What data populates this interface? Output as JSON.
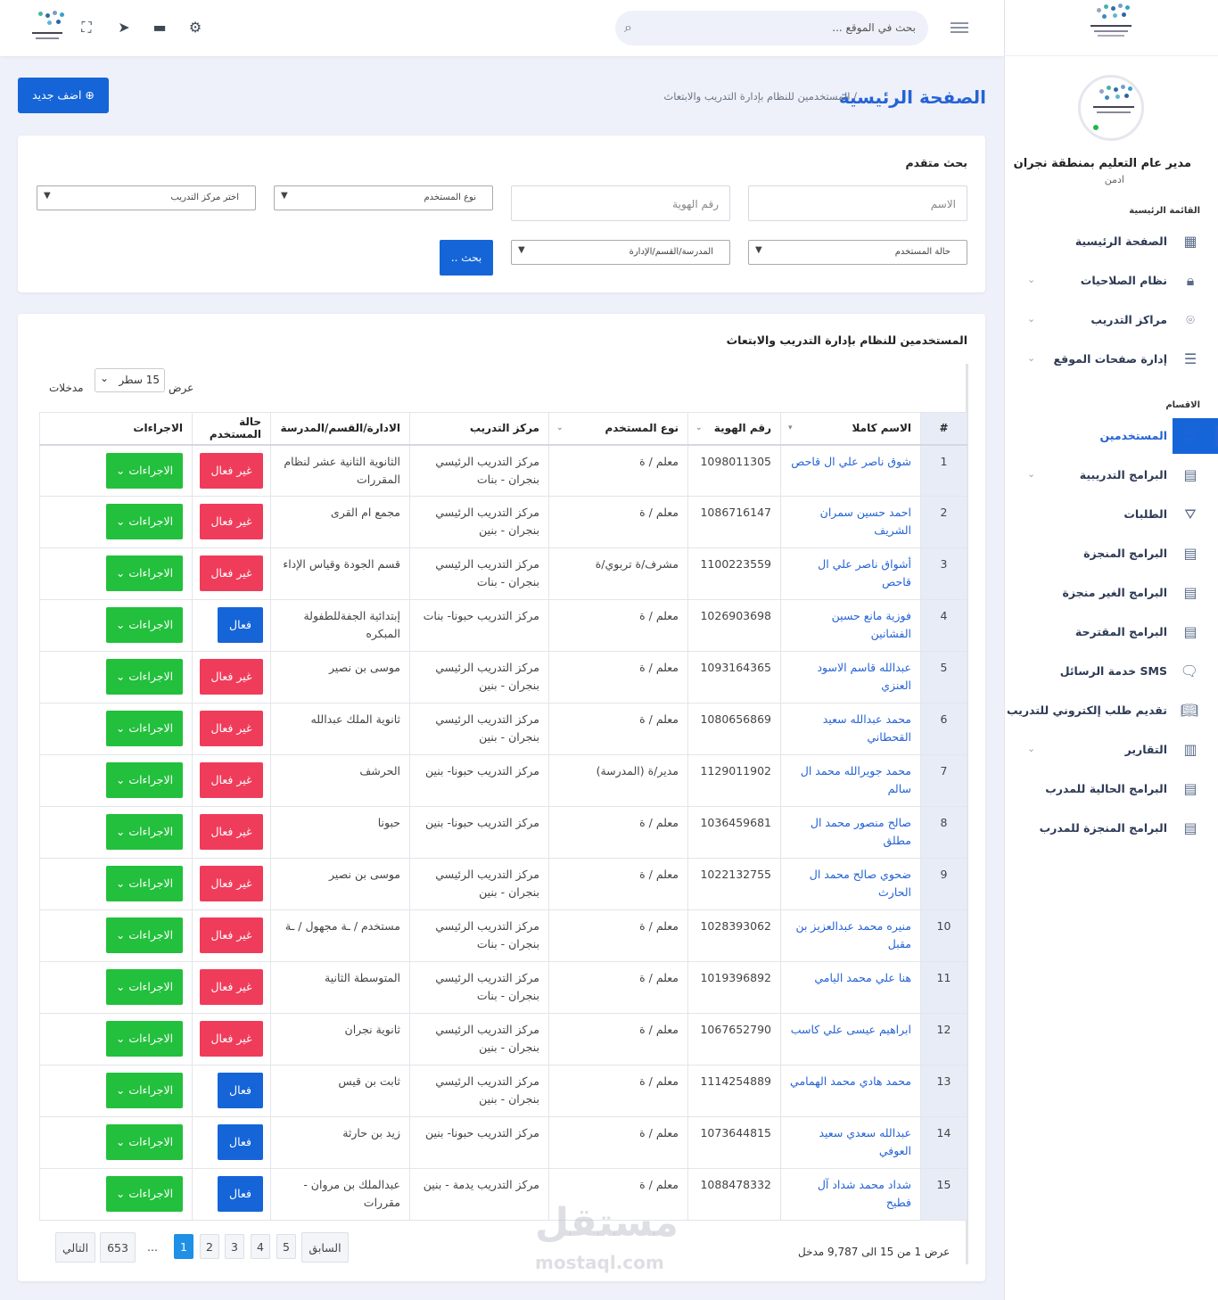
{
  "topbar": {
    "search_placeholder": "بحث في الموقع ...",
    "icons": [
      "menu-icon",
      "search-icon",
      "settings-icon",
      "chat-icon",
      "send-icon",
      "fullscreen-icon",
      "logo"
    ]
  },
  "sidebar": {
    "user_name": "مدير عام التعليم بمنطقة نجران",
    "user_role": "ادمن",
    "main_section": "القائمة الرئيسية",
    "main_items": [
      {
        "label": "الصفحة الرئيسية",
        "icon": "grid-icon",
        "has_chevron": false
      },
      {
        "label": "نظام الصلاحيات",
        "icon": "lock-icon",
        "has_chevron": true
      },
      {
        "label": "مراكز التدريب",
        "icon": "pin-icon",
        "has_chevron": true
      },
      {
        "label": "إدارة صفحات الموقع",
        "icon": "server-icon",
        "has_chevron": true
      }
    ],
    "sections_title": "الاقسام",
    "section_items": [
      {
        "label": "المستخدمين",
        "icon": "smile-icon",
        "active": true,
        "has_chevron": false
      },
      {
        "label": "البرامج التدريبية",
        "icon": "table-icon",
        "has_chevron": true
      },
      {
        "label": "الطلبات",
        "icon": "basket-icon",
        "has_chevron": false
      },
      {
        "label": "البرامج المنجزة",
        "icon": "table-icon",
        "has_chevron": false
      },
      {
        "label": "البرامج الغير منجزة",
        "icon": "table-icon",
        "has_chevron": false
      },
      {
        "label": "البرامج المقترحة",
        "icon": "table-icon",
        "has_chevron": false
      },
      {
        "label": "SMS خدمة الرسائل",
        "icon": "message-icon",
        "has_chevron": false
      },
      {
        "label": "تقديم طلب إلكتروني للتدريب",
        "icon": "book-icon",
        "has_chevron": false
      },
      {
        "label": "التقارير",
        "icon": "chart-icon",
        "has_chevron": true
      },
      {
        "label": "البرامج الحالية للمدرب",
        "icon": "table-icon",
        "has_chevron": false
      },
      {
        "label": "البرامج المنجزة للمدرب",
        "icon": "table-icon",
        "has_chevron": false
      }
    ]
  },
  "header": {
    "title": "الصفحة الرئيسية",
    "breadcrumb": "/ المستخدمين للنظام بإدارة التدريب والابتعاث",
    "add_button": "اضف جديد"
  },
  "search_card": {
    "title": "بحث متقدم",
    "name_placeholder": "الاسم",
    "id_placeholder": "رقم الهوية",
    "user_type_placeholder": "نوع المستخدم",
    "center_placeholder": "اختر مركز التدريب",
    "status_placeholder": "حالة المستخدم",
    "dept_placeholder": "المدرسة/القسم/الإدارة",
    "search_button": "بحث .."
  },
  "table_card": {
    "title": "المستخدمين للنظام بإدارة التدريب والابتعاث",
    "show_label": "عرض",
    "length_value": "15 سطر",
    "entries_label": "مدخلات",
    "columns": [
      "#",
      "الاسم كاملا",
      "رقم الهوية",
      "نوع المستخدم",
      "مركز التدريب",
      "الادارة/القسم/المدرسة",
      "حالة المستخدم",
      "الاجراءات"
    ],
    "rows": [
      [
        "1",
        "شوق ناصر علي ال قاحص",
        "1098011305",
        "معلم / ة",
        "مركز التدريب الرئيسي بنجران - بنات",
        "الثانوية الثانية عشر لنظام المقررات",
        "غير فعال"
      ],
      [
        "2",
        "احمد حسين سمران الشريف",
        "1086716147",
        "معلم / ة",
        "مركز التدريب الرئيسي بنجران - بنين",
        "مجمع ام القرى",
        "غير فعال"
      ],
      [
        "3",
        "أشواق ناصر علي ال قاحص",
        "1100223559",
        "مشرف/ة تربوي/ة",
        "مركز التدريب الرئيسي بنجران - بنات",
        "قسم الجودة وقياس الإداء",
        "غير فعال"
      ],
      [
        "4",
        "فوزية مانع حسين الفشانين",
        "1026903698",
        "معلم / ة",
        "مركز التدريب حبونا- بنات",
        "إبتدائية الجفةللطفولة المبكره",
        "فعال"
      ],
      [
        "5",
        "عبدالله قاسم الاسود العنزي",
        "1093164365",
        "معلم / ة",
        "مركز التدريب الرئيسي بنجران - بنين",
        "موسى بن نصير",
        "غير فعال"
      ],
      [
        "6",
        "محمد عبدالله سعيد القحطاني",
        "1080656869",
        "معلم / ة",
        "مركز التدريب الرئيسي بنجران - بنين",
        "ثانوية الملك عبدالله",
        "غير فعال"
      ],
      [
        "7",
        "محمد جويرالله محمد ال سالم",
        "1129011902",
        "مدير/ة (المدرسة)",
        "مركز التدريب حبونا- بنين",
        "الحرشف",
        "غير فعال"
      ],
      [
        "8",
        "صالح منصور محمد ال مطلق",
        "1036459681",
        "معلم / ة",
        "مركز التدريب حبونا- بنين",
        "حبونا",
        "غير فعال"
      ],
      [
        "9",
        "ضحوي صالح محمد ال الحارث",
        "1022132755",
        "معلم / ة",
        "مركز التدريب الرئيسي بنجران - بنين",
        "موسى بن نصير",
        "غير فعال"
      ],
      [
        "10",
        "منيره محمد عبدالعزيز بن مقبل",
        "1028393062",
        "معلم / ة",
        "مركز التدريب الرئيسي بنجران - بنات",
        "مستخدم / ـة مجهول / ـة",
        "غير فعال"
      ],
      [
        "11",
        "هنا علي محمد اليامي",
        "1019396892",
        "معلم / ة",
        "مركز التدريب الرئيسي بنجران - بنات",
        "المتوسطة الثانية",
        "غير فعال"
      ],
      [
        "12",
        "ابراهيم عيسى علي كاسب",
        "1067652790",
        "معلم / ة",
        "مركز التدريب الرئيسي بنجران - بنين",
        "ثانوية نجران",
        "غير فعال"
      ],
      [
        "13",
        "محمد هادي محمد الهمامي",
        "1114254889",
        "معلم / ة",
        "مركز التدريب الرئيسي بنجران - بنين",
        "ثابت بن قيس",
        "فعال"
      ],
      [
        "14",
        "عبدالله سعدي سعيد العوفي",
        "1073644815",
        "معلم / ة",
        "مركز التدريب حبونا- بنين",
        "زيد بن حارثة",
        "فعال"
      ],
      [
        "15",
        "شداد محمد شداد آل فطيح",
        "1088478332",
        "معلم / ة",
        "مركز التدريب يدمة - بنين",
        "عبدالملك بن مروان - مقررات",
        "فعال"
      ]
    ],
    "action_label": "الاجراءات",
    "info": "عرض 1 من 15 الى 9,787 مدخل",
    "pagination": [
      "السابق",
      "1",
      "2",
      "3",
      "4",
      "5",
      "...",
      "653",
      "التالي"
    ]
  },
  "watermark": {
    "text": "مستقل",
    "sub": "mostaql.com"
  }
}
